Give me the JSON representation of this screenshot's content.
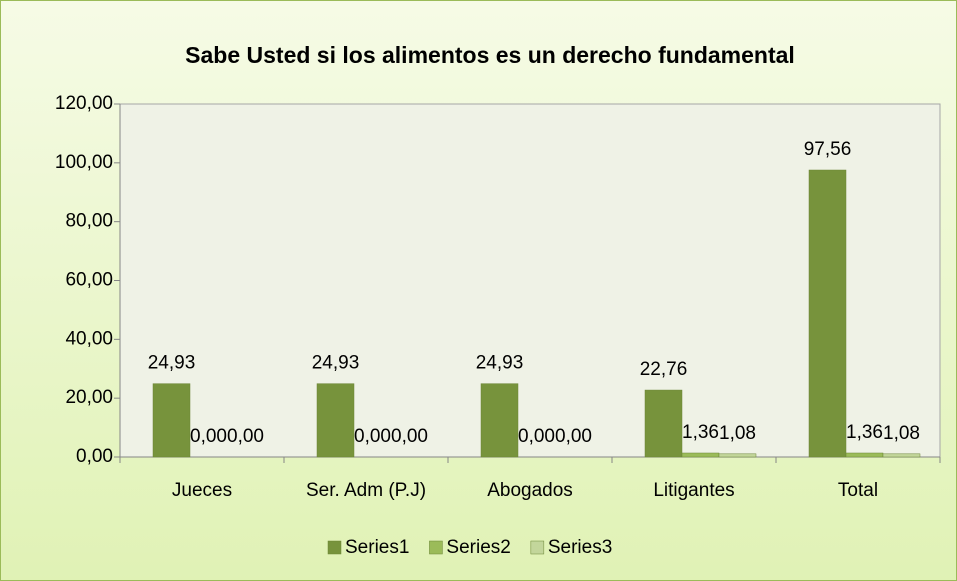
{
  "chart_data": {
    "type": "bar",
    "title": "Sabe Usted si los alimentos es un derecho fundamental",
    "categories": [
      "Jueces",
      "Ser. Adm (P.J)",
      "Abogados",
      "Litigantes",
      "Total"
    ],
    "series": [
      {
        "name": "Series1",
        "color": "#77933c",
        "values": [
          24.93,
          24.93,
          24.93,
          22.76,
          97.56
        ],
        "value_labels": [
          "24,93",
          "24,93",
          "24,93",
          "22,76",
          "97,56"
        ]
      },
      {
        "name": "Series2",
        "color": "#9bbb59",
        "values": [
          0,
          0,
          0,
          1.36,
          1.36
        ],
        "value_labels": [
          "0,00",
          "0,00",
          "0,00",
          "1,36",
          "1,36"
        ]
      },
      {
        "name": "Series3",
        "color": "#c3d69b",
        "values": [
          0,
          0,
          0,
          1.08,
          1.08
        ],
        "value_labels": [
          "0,00",
          "0,00",
          "0,00",
          "1,08",
          "1,08"
        ]
      }
    ],
    "ylim": [
      0,
      120
    ],
    "yticks": [
      {
        "value": 0,
        "label": "0,00"
      },
      {
        "value": 20,
        "label": "20,00"
      },
      {
        "value": 40,
        "label": "40,00"
      },
      {
        "value": 60,
        "label": "60,00"
      },
      {
        "value": 80,
        "label": "80,00"
      },
      {
        "value": 100,
        "label": "100,00"
      },
      {
        "value": 120,
        "label": "120,00"
      }
    ],
    "grid": false,
    "legend": "bottom"
  }
}
